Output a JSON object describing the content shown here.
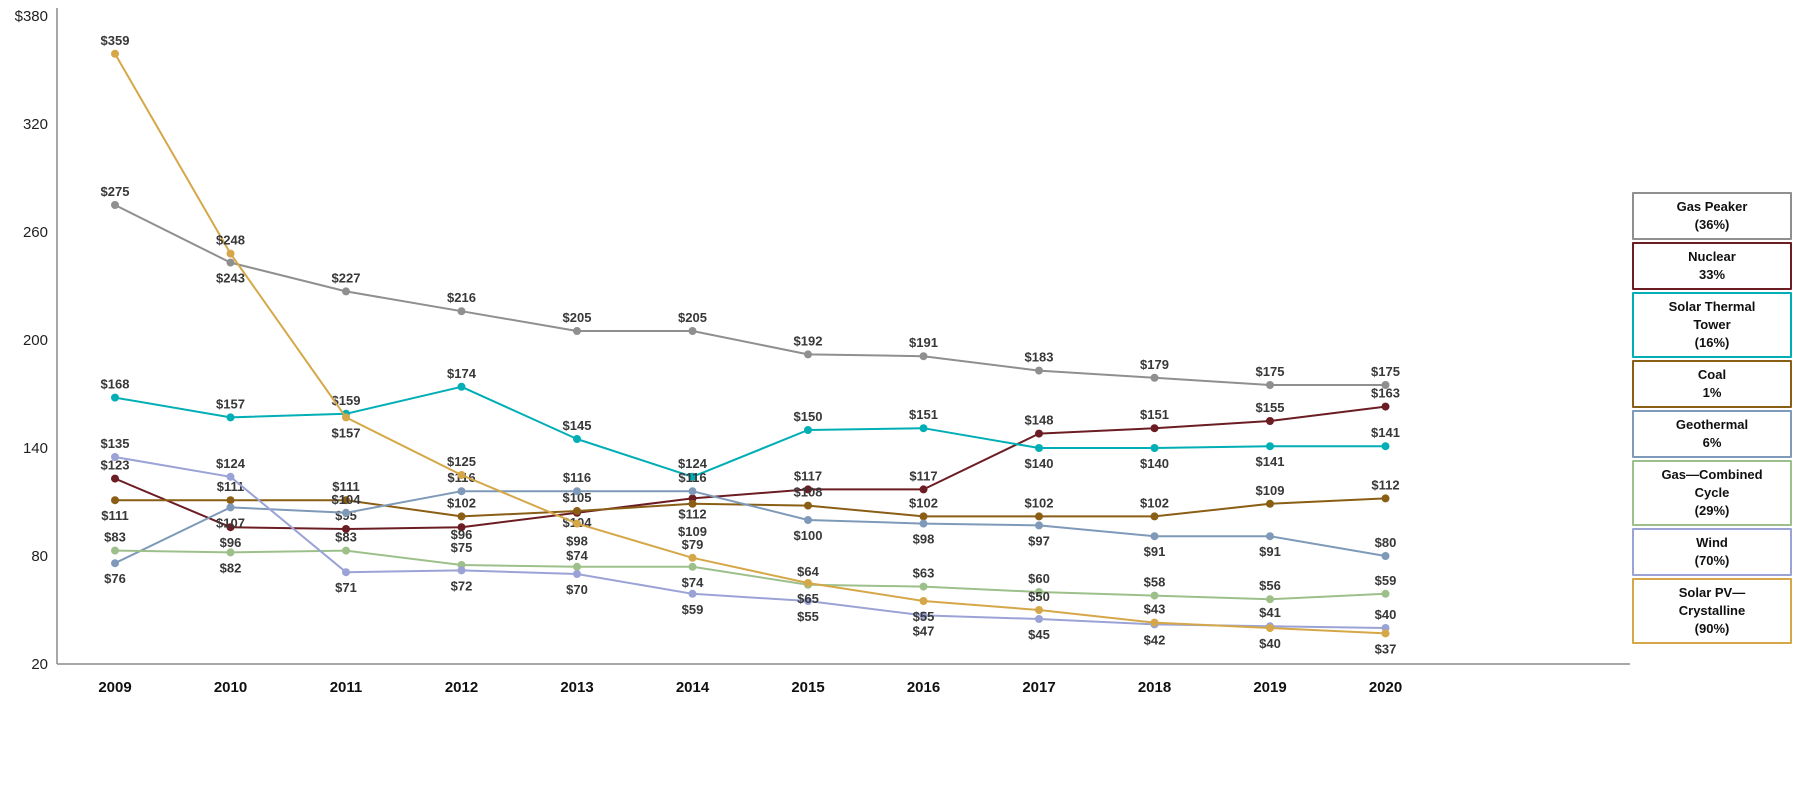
{
  "chart_data": {
    "type": "line",
    "title": "",
    "currency_prefix": "$",
    "grid": false,
    "legend_position": "right",
    "x_labels": [
      "2009",
      "2010",
      "2011",
      "2012",
      "2013",
      "2014",
      "2015",
      "2016",
      "2017",
      "2018",
      "2019",
      "2020"
    ],
    "y_axis": {
      "min": 20,
      "max": 380,
      "ticks": [
        {
          "label": "$380",
          "value": 380
        },
        {
          "label": "320",
          "value": 320
        },
        {
          "label": "260",
          "value": 260
        },
        {
          "label": "200",
          "value": 200
        },
        {
          "label": "140",
          "value": 140
        },
        {
          "label": "80",
          "value": 80
        },
        {
          "label": "20",
          "value": 20
        }
      ]
    },
    "layout": {
      "plot": {
        "axisX": 57,
        "yTop": 16,
        "yBottom": 664,
        "xRight": 1630,
        "x0": 115,
        "dx": 115.5
      }
    },
    "series": [
      {
        "id": "gas-peaker",
        "name": "Gas Peaker",
        "change_label": "(36%)",
        "legend_lines": [
          "Gas Peaker",
          "(36%)"
        ],
        "color": "#8F8F8F",
        "values": [
          275,
          243,
          227,
          216,
          205,
          205,
          192,
          191,
          183,
          179,
          175,
          175
        ],
        "label_dy": [
          -9,
          20,
          -9,
          -9,
          -9,
          -9,
          -9,
          -9,
          -9,
          -9,
          -9,
          -9
        ]
      },
      {
        "id": "nuclear",
        "name": "Nuclear",
        "change_label": "33%",
        "legend_lines": [
          "Nuclear",
          "33%"
        ],
        "color": "#6B1D23",
        "values": [
          123,
          96,
          95,
          96,
          104,
          112,
          117,
          117,
          148,
          151,
          155,
          163
        ],
        "label_dy": [
          -9,
          20,
          -9,
          12,
          14,
          20,
          -9,
          -9,
          -9,
          -9,
          -9,
          -9
        ]
      },
      {
        "id": "solar-thermal-tower",
        "name": "Solar Thermal Tower",
        "change_label": "(16%)",
        "legend_lines": [
          "Solar Thermal",
          "Tower",
          "(16%)"
        ],
        "color": "#00AEB5",
        "values": [
          168,
          157,
          159,
          174,
          145,
          124,
          150,
          151,
          140,
          140,
          141,
          141
        ],
        "label_dy": [
          -9,
          -9,
          -9,
          -9,
          -9,
          -9,
          -9,
          -9,
          20,
          20,
          20,
          -9
        ]
      },
      {
        "id": "coal",
        "name": "Coal",
        "change_label": "1%",
        "legend_lines": [
          "Coal",
          "1%"
        ],
        "color": "#8A5E14",
        "values": [
          111,
          111,
          111,
          102,
          105,
          109,
          108,
          102,
          102,
          102,
          109,
          112
        ],
        "label_dy": [
          20,
          -9,
          -9,
          -9,
          -9,
          32,
          -9,
          -9,
          -9,
          -9,
          -9,
          -9
        ]
      },
      {
        "id": "geothermal",
        "name": "Geothermal",
        "change_label": "6%",
        "legend_lines": [
          "Geothermal",
          "6%"
        ],
        "color": "#7E9AB8",
        "values": [
          76,
          107,
          104,
          116,
          116,
          116,
          100,
          98,
          97,
          91,
          91,
          80
        ],
        "label_dy": [
          20,
          20,
          -9,
          -9,
          -9,
          -9,
          20,
          20,
          20,
          20,
          20,
          -9
        ]
      },
      {
        "id": "gas-combined-cycle",
        "name": "Gas—Combined Cycle",
        "change_label": "(29%)",
        "legend_lines": [
          "Gas—Combined",
          "Cycle",
          "(29%)"
        ],
        "color": "#9DC08B",
        "values": [
          83,
          82,
          83,
          75,
          74,
          74,
          64,
          63,
          60,
          58,
          56,
          59
        ],
        "label_dy": [
          -9,
          20,
          -9,
          -13,
          -7,
          20,
          -9,
          -9,
          -9,
          -9,
          -9,
          -9
        ]
      },
      {
        "id": "wind",
        "name": "Wind",
        "change_label": "(70%)",
        "legend_lines": [
          "Wind",
          "(70%)"
        ],
        "color": "#9BA3D6",
        "values": [
          135,
          124,
          71,
          72,
          70,
          59,
          55,
          47,
          45,
          42,
          41,
          40
        ],
        "label_dy": [
          -9,
          -9,
          20,
          20,
          20,
          20,
          20,
          20,
          20,
          20,
          -9,
          -9
        ]
      },
      {
        "id": "solar-pv-crystalline",
        "name": "Solar PV—Crystalline",
        "change_label": "(90%)",
        "legend_lines": [
          "Solar PV—",
          "Crystalline",
          "(90%)"
        ],
        "color": "#D5A748",
        "values": [
          359,
          248,
          157,
          125,
          98,
          79,
          65,
          55,
          50,
          43,
          40,
          37
        ],
        "label_dy": [
          -9,
          -9,
          20,
          -9,
          22,
          -9,
          20,
          20,
          -9,
          -9,
          20,
          20
        ]
      }
    ]
  }
}
